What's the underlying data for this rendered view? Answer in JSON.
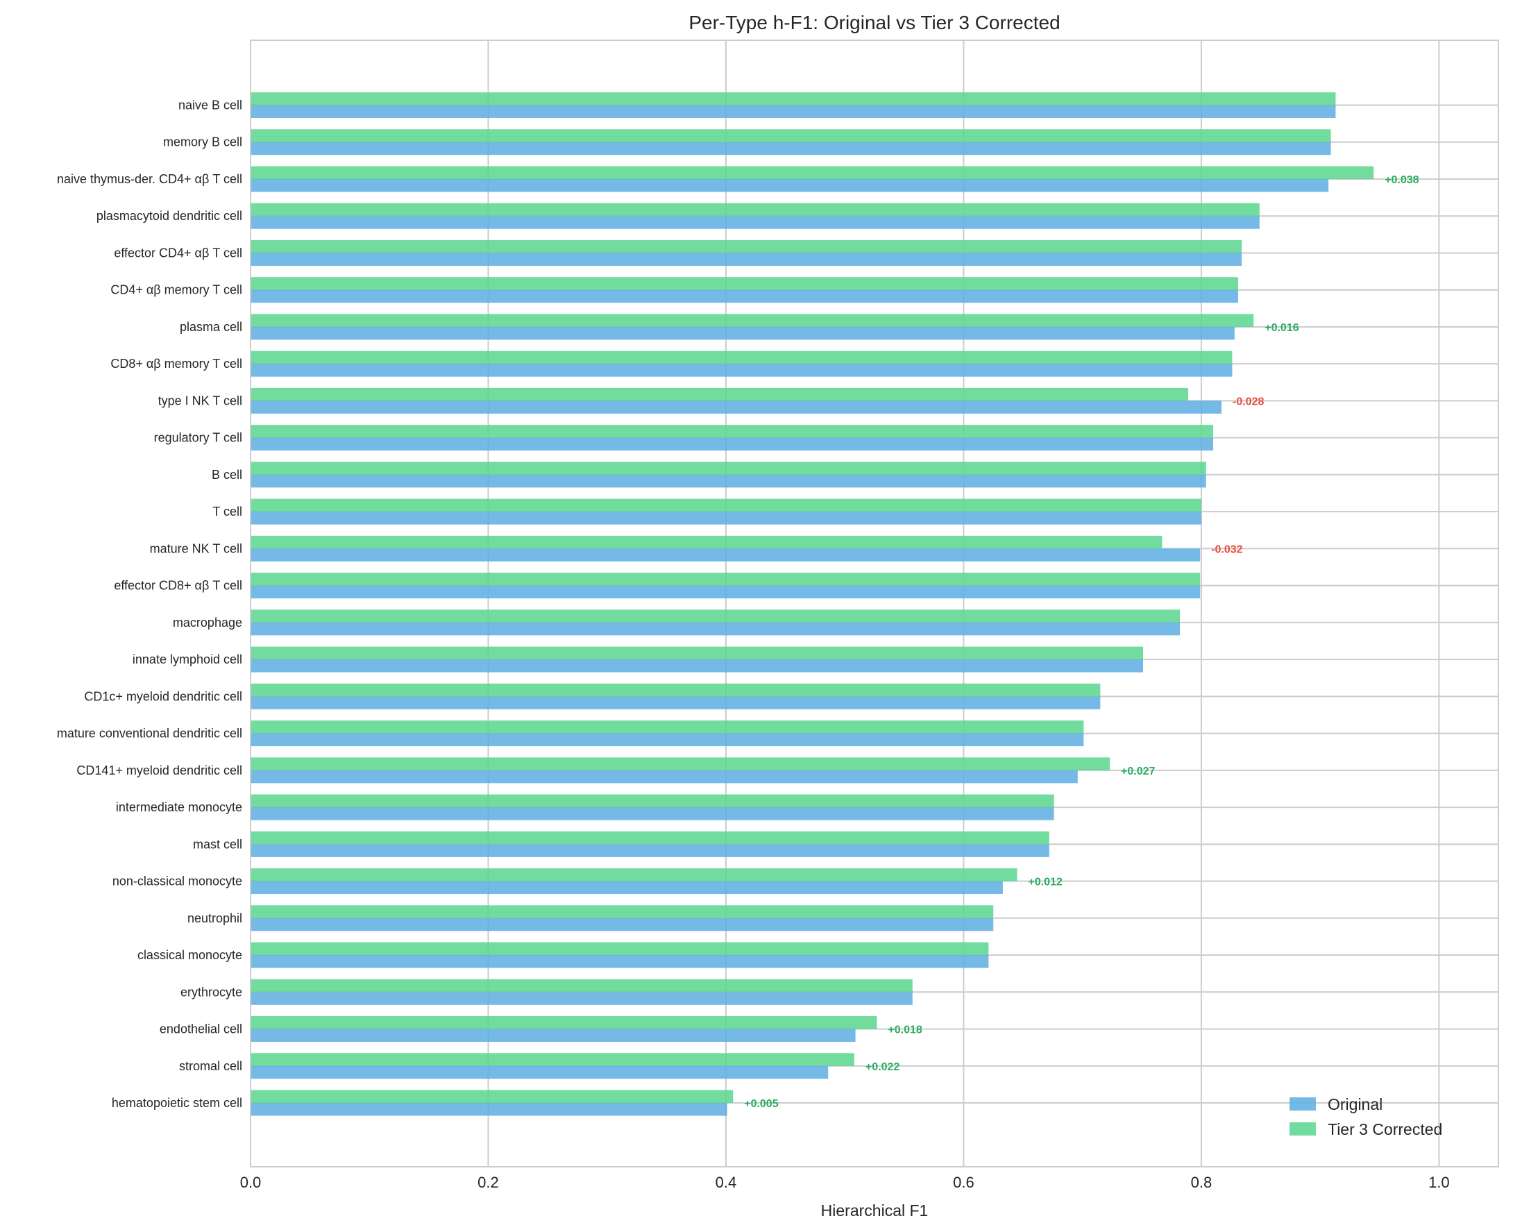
{
  "chart_data": {
    "type": "bar",
    "orientation": "horizontal",
    "title": "Per-Type h-F1: Original vs Tier 3 Corrected",
    "xlabel": "Hierarchical F1",
    "ylabel": "",
    "xlim": [
      0,
      1.05
    ],
    "xticks": [
      "0.0",
      "0.2",
      "0.4",
      "0.6",
      "0.8",
      "1.0"
    ],
    "grid": true,
    "legend_position": "bottom-right",
    "categories": [
      "naive B cell",
      "memory B cell",
      "naive thymus-der. CD4+ αβ T cell",
      "plasmacytoid dendritic cell",
      "effector CD4+ αβ T cell",
      "CD4+ αβ memory T cell",
      "plasma cell",
      "CD8+ αβ memory T cell",
      "type I NK T cell",
      "regulatory T cell",
      "B cell",
      "T cell",
      "mature NK T cell",
      "effector CD8+ αβ T cell",
      "macrophage",
      "innate lymphoid cell",
      "CD1c+ myeloid dendritic cell",
      "mature conventional dendritic cell",
      "CD141+ myeloid dendritic cell",
      "intermediate monocyte",
      "mast cell",
      "non-classical monocyte",
      "neutrophil",
      "classical monocyte",
      "erythrocyte",
      "endothelial cell",
      "stromal cell",
      "hematopoietic stem cell"
    ],
    "series": [
      {
        "name": "Original",
        "color": "#5dade2",
        "values": [
          0.913,
          0.909,
          0.907,
          0.849,
          0.834,
          0.831,
          0.828,
          0.826,
          0.817,
          0.81,
          0.804,
          0.8,
          0.799,
          0.799,
          0.782,
          0.751,
          0.715,
          0.701,
          0.696,
          0.676,
          0.672,
          0.633,
          0.625,
          0.621,
          0.557,
          0.509,
          0.486,
          0.401
        ]
      },
      {
        "name": "Tier 3 Corrected",
        "color": "#58d68d",
        "values": [
          0.913,
          0.909,
          0.945,
          0.849,
          0.834,
          0.831,
          0.844,
          0.826,
          0.789,
          0.81,
          0.804,
          0.8,
          0.767,
          0.799,
          0.782,
          0.751,
          0.715,
          0.701,
          0.723,
          0.676,
          0.672,
          0.645,
          0.625,
          0.621,
          0.557,
          0.527,
          0.508,
          0.406
        ]
      }
    ],
    "annotations": [
      {
        "category": "naive thymus-der. CD4+ αβ T cell",
        "text": "+0.038",
        "color": "#27ae60"
      },
      {
        "category": "plasma cell",
        "text": "+0.016",
        "color": "#27ae60"
      },
      {
        "category": "type I NK T cell",
        "text": "-0.028",
        "color": "#e74c3c"
      },
      {
        "category": "mature NK T cell",
        "text": "-0.032",
        "color": "#e74c3c"
      },
      {
        "category": "CD141+ myeloid dendritic cell",
        "text": "+0.027",
        "color": "#27ae60"
      },
      {
        "category": "non-classical monocyte",
        "text": "+0.012",
        "color": "#27ae60"
      },
      {
        "category": "endothelial cell",
        "text": "+0.018",
        "color": "#27ae60"
      },
      {
        "category": "stromal cell",
        "text": "+0.022",
        "color": "#27ae60"
      },
      {
        "category": "hematopoietic stem cell",
        "text": "+0.005",
        "color": "#27ae60"
      }
    ]
  }
}
